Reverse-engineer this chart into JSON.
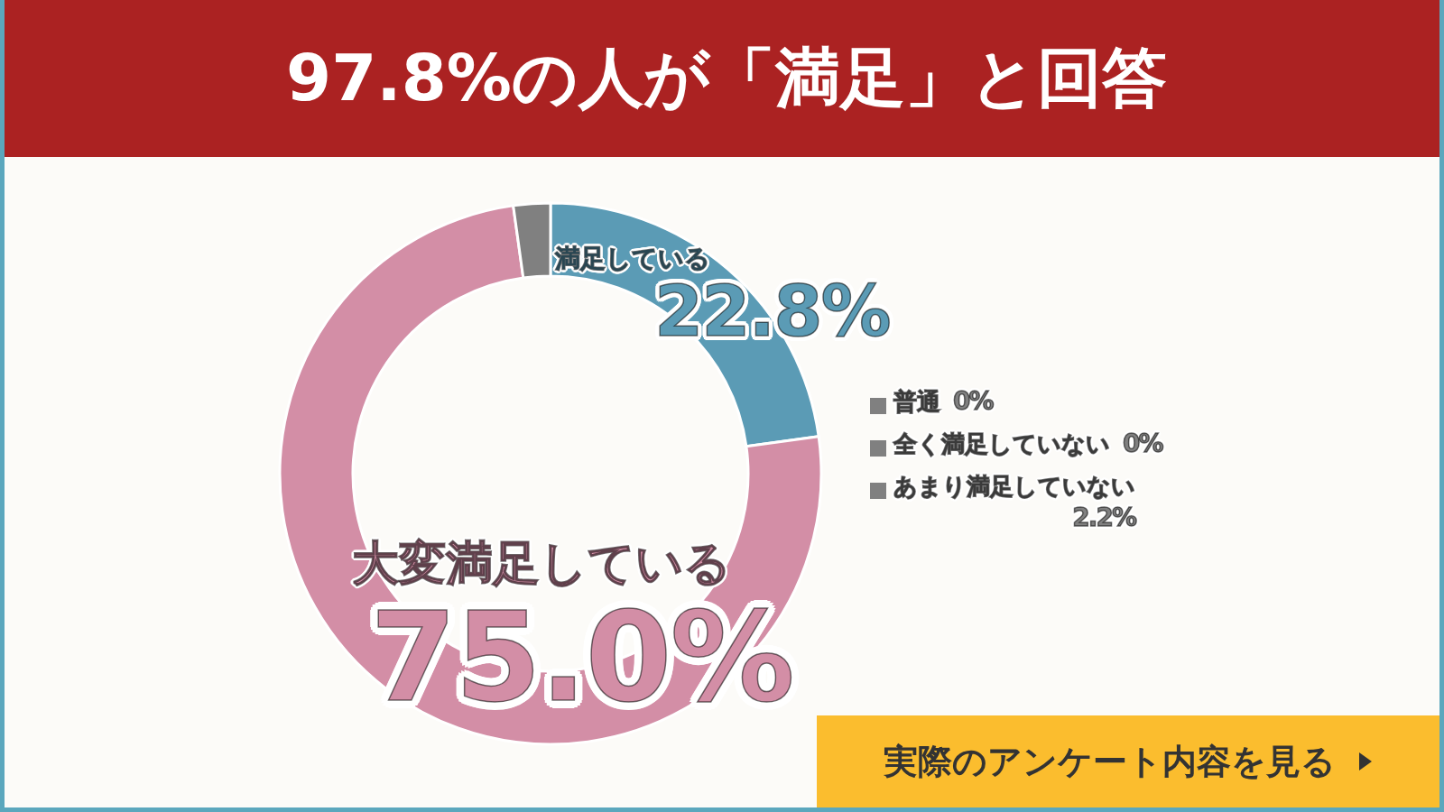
{
  "chart_data": {
    "type": "donut",
    "title": "97.8%の人が「満足」と回答",
    "categories": [
      "満足している",
      "大変満足している",
      "普通",
      "全く満足していない",
      "あまり満足していない"
    ],
    "values": [
      22.8,
      75.0,
      0,
      0,
      2.2
    ],
    "value_labels": [
      "22.8%",
      "75.0%",
      "0%",
      "0%",
      "2.2%"
    ],
    "colors": [
      "#5b9bb5",
      "#d38ea6",
      "#808080",
      "#808080",
      "#808080"
    ],
    "annotations": [
      "実際のアンケート内容を見る"
    ],
    "legend": "right"
  }
}
